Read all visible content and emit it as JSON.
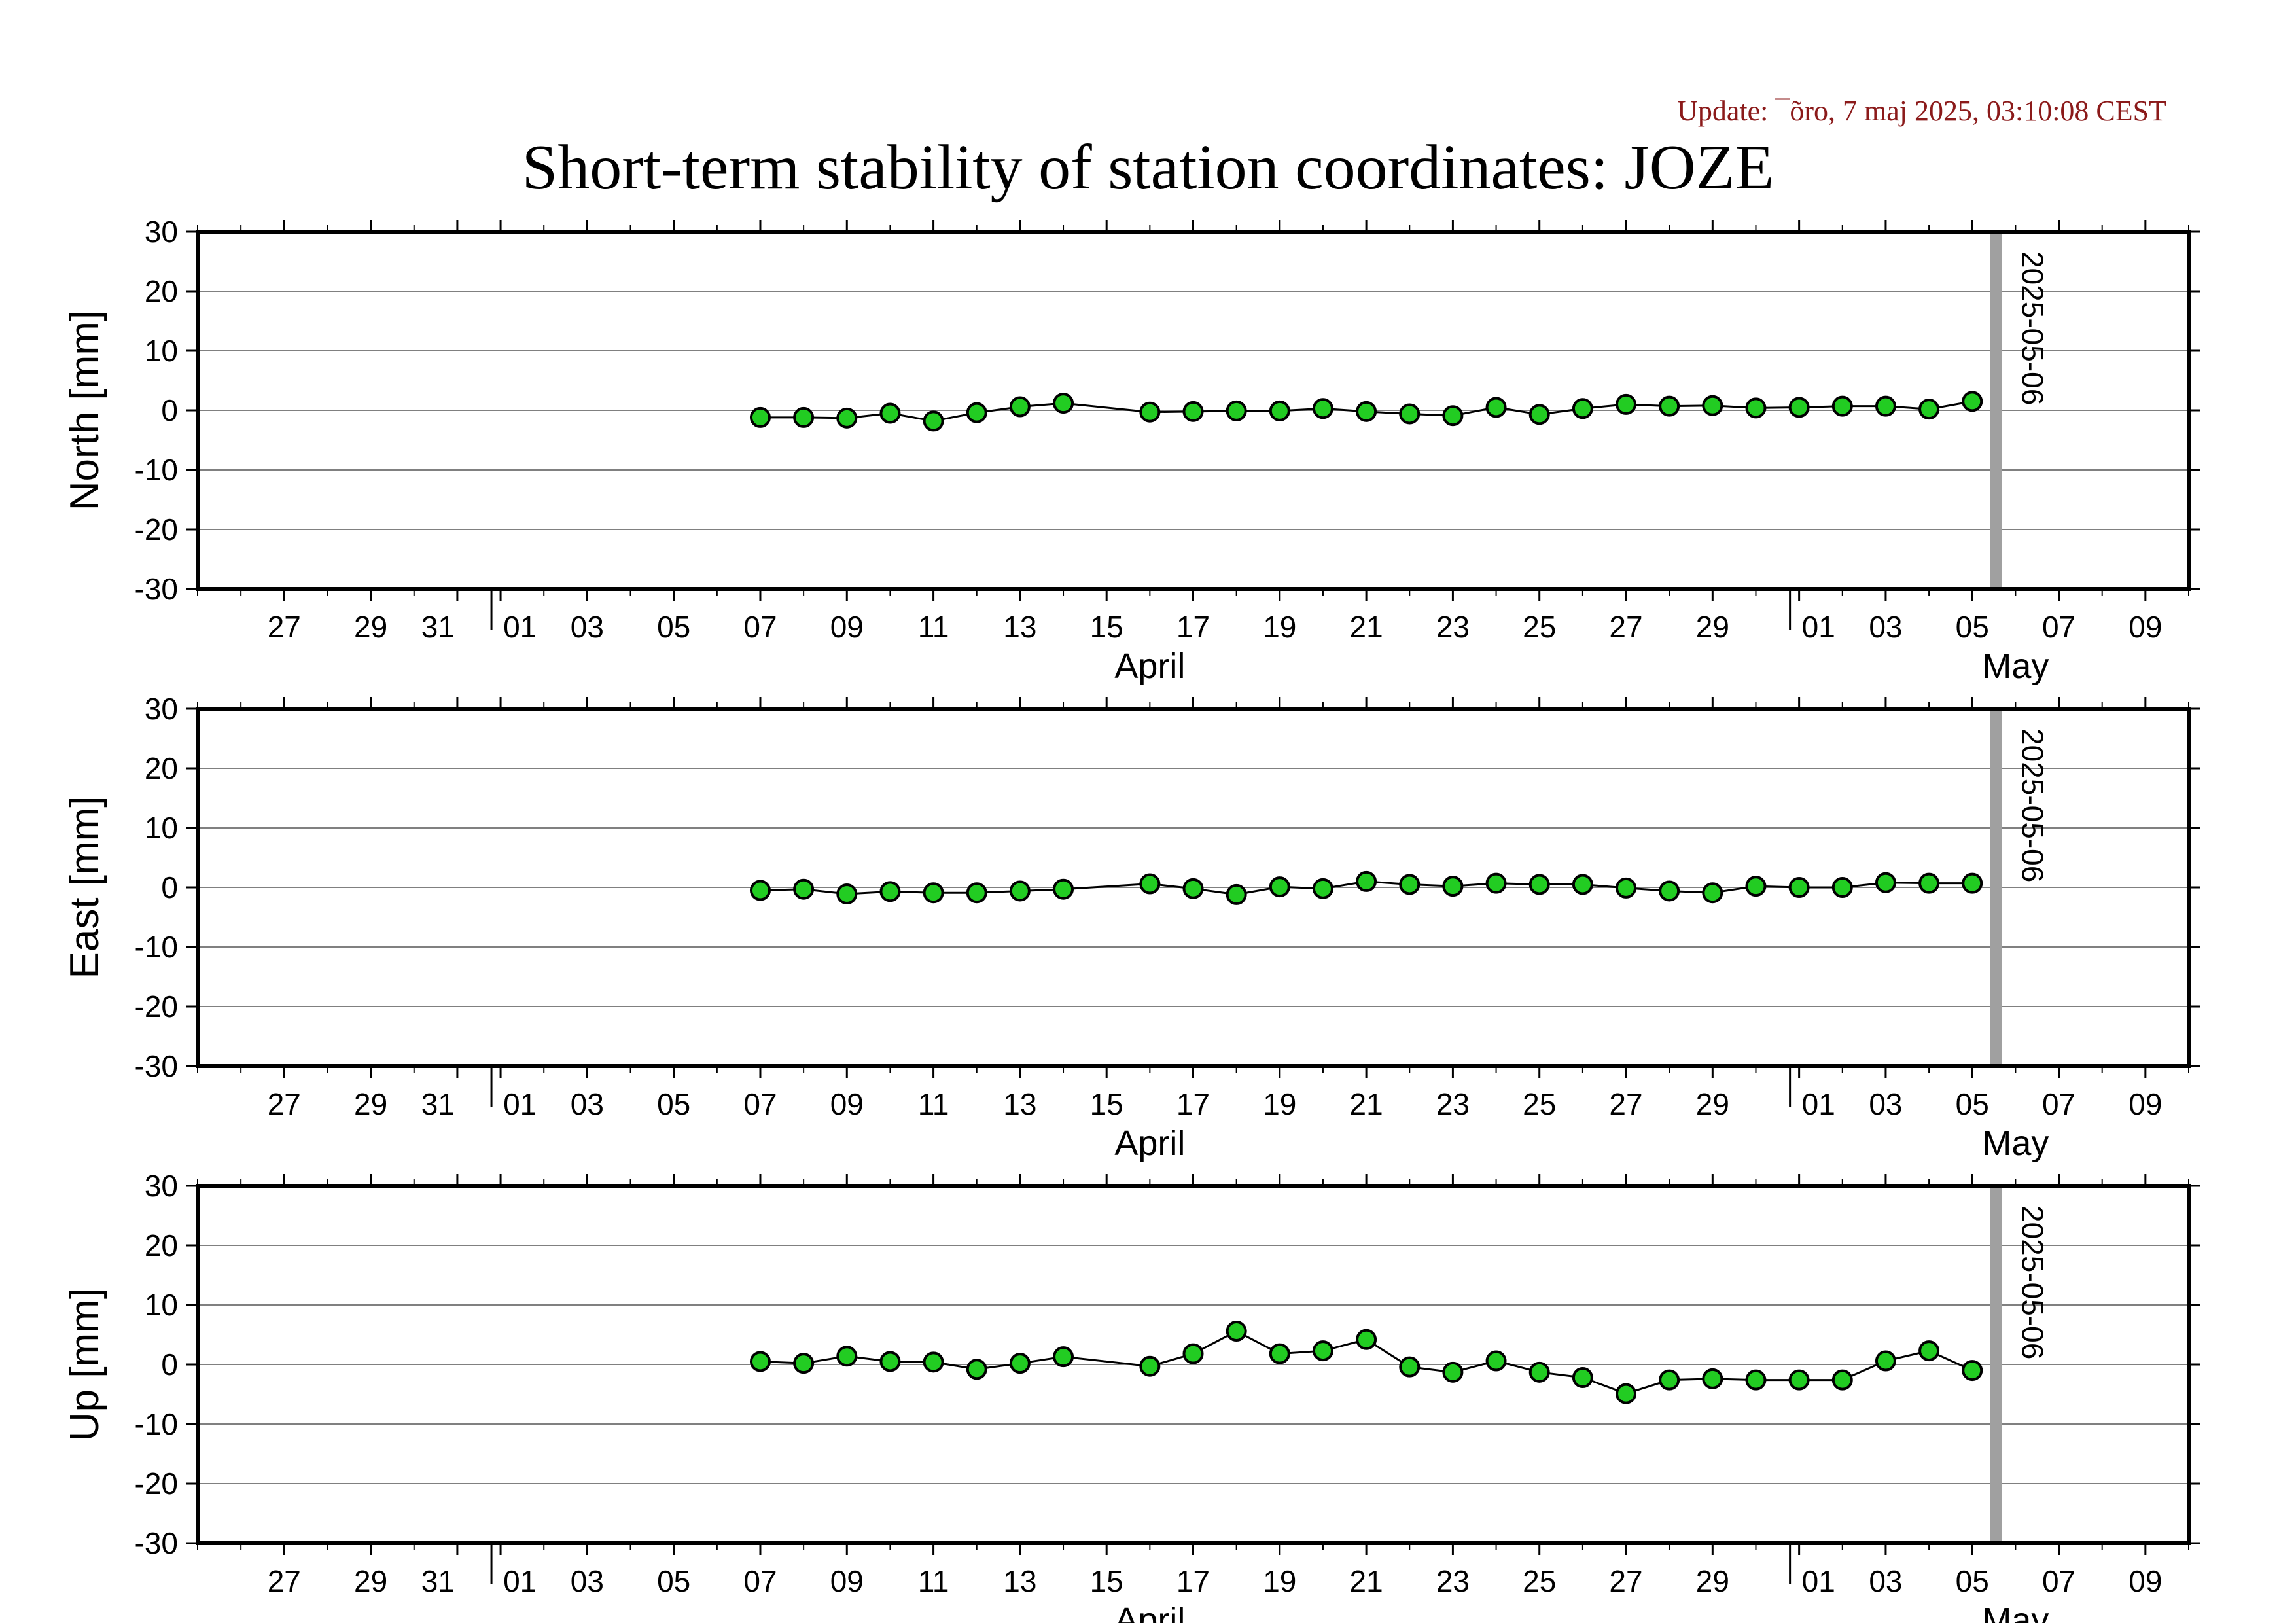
{
  "update_text": "Update: ¯õro, 7 maj 2025, 03:10:08 CEST",
  "title": "Short-term stability of station coordinates: JOZE",
  "chart_data": {
    "type": "line",
    "x_range": [
      "2025-03-25",
      "2025-05-10"
    ],
    "y_range": [
      -30,
      30
    ],
    "y_ticks": [
      -30,
      -20,
      -10,
      0,
      10,
      20,
      30
    ],
    "grid": "horizontal",
    "marker_color": "#22cc22",
    "line_color": "#000000",
    "x_tick_labels": [
      {
        "date": "2025-03-27",
        "label": "27"
      },
      {
        "date": "2025-03-29",
        "label": "29"
      },
      {
        "date": "2025-03-31",
        "label": "31"
      },
      {
        "date": "2025-04-01",
        "label": "01"
      },
      {
        "date": "2025-04-03",
        "label": "03"
      },
      {
        "date": "2025-04-05",
        "label": "05"
      },
      {
        "date": "2025-04-07",
        "label": "07"
      },
      {
        "date": "2025-04-09",
        "label": "09"
      },
      {
        "date": "2025-04-11",
        "label": "11"
      },
      {
        "date": "2025-04-13",
        "label": "13"
      },
      {
        "date": "2025-04-15",
        "label": "15"
      },
      {
        "date": "2025-04-17",
        "label": "17"
      },
      {
        "date": "2025-04-19",
        "label": "19"
      },
      {
        "date": "2025-04-21",
        "label": "21"
      },
      {
        "date": "2025-04-23",
        "label": "23"
      },
      {
        "date": "2025-04-25",
        "label": "25"
      },
      {
        "date": "2025-04-27",
        "label": "27"
      },
      {
        "date": "2025-04-29",
        "label": "29"
      },
      {
        "date": "2025-05-01",
        "label": "01"
      },
      {
        "date": "2025-05-03",
        "label": "03"
      },
      {
        "date": "2025-05-05",
        "label": "05"
      },
      {
        "date": "2025-05-07",
        "label": "07"
      },
      {
        "date": "2025-05-09",
        "label": "09"
      }
    ],
    "month_labels": [
      {
        "date": "2025-04-16",
        "label": "April"
      },
      {
        "date": "2025-05-06",
        "label": "May"
      }
    ],
    "month_boundaries": [
      "2025-04-01",
      "2025-05-01"
    ],
    "marker_line": {
      "date": "2025-05-06",
      "label": "2025-05-06",
      "color": "#a0a0a0"
    },
    "dates": [
      "2025-04-07",
      "2025-04-08",
      "2025-04-09",
      "2025-04-10",
      "2025-04-11",
      "2025-04-12",
      "2025-04-13",
      "2025-04-14",
      "2025-04-16",
      "2025-04-17",
      "2025-04-18",
      "2025-04-19",
      "2025-04-20",
      "2025-04-21",
      "2025-04-22",
      "2025-04-23",
      "2025-04-24",
      "2025-04-25",
      "2025-04-26",
      "2025-04-27",
      "2025-04-28",
      "2025-04-29",
      "2025-04-30",
      "2025-05-01",
      "2025-05-02",
      "2025-05-03",
      "2025-05-04",
      "2025-05-05"
    ],
    "panels": [
      {
        "ylabel": "North [mm]",
        "values": [
          -1.2,
          -1.2,
          -1.3,
          -0.5,
          -1.8,
          -0.4,
          0.6,
          1.2,
          -0.3,
          -0.2,
          -0.1,
          -0.1,
          0.3,
          -0.2,
          -0.6,
          -0.9,
          0.5,
          -0.7,
          0.3,
          1.0,
          0.7,
          0.8,
          0.4,
          0.5,
          0.7,
          0.7,
          0.2,
          1.5
        ]
      },
      {
        "ylabel": "East [mm]",
        "values": [
          -0.5,
          -0.3,
          -1.1,
          -0.7,
          -0.9,
          -0.9,
          -0.6,
          -0.3,
          0.6,
          -0.2,
          -1.2,
          0.1,
          -0.2,
          1.0,
          0.5,
          0.2,
          0.7,
          0.5,
          0.5,
          -0.1,
          -0.6,
          -0.9,
          0.2,
          0.0,
          0.0,
          0.8,
          0.7,
          0.7
        ]
      },
      {
        "ylabel": "Up [mm]",
        "values": [
          0.5,
          0.2,
          1.4,
          0.5,
          0.4,
          -0.8,
          0.2,
          1.3,
          -0.3,
          1.8,
          5.6,
          1.8,
          2.3,
          4.2,
          -0.4,
          -1.3,
          0.6,
          -1.3,
          -2.2,
          -4.9,
          -2.6,
          -2.4,
          -2.6,
          -2.6,
          -2.6,
          0.6,
          2.3,
          -1.0
        ]
      }
    ]
  }
}
